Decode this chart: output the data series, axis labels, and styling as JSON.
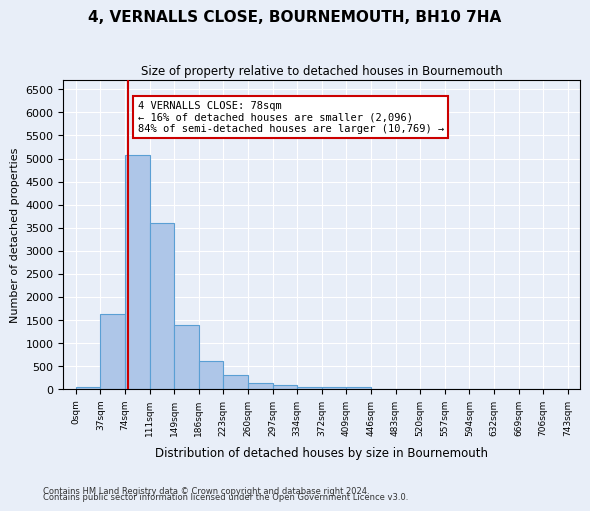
{
  "title": "4, VERNALLS CLOSE, BOURNEMOUTH, BH10 7HA",
  "subtitle": "Size of property relative to detached houses in Bournemouth",
  "xlabel": "Distribution of detached houses by size in Bournemouth",
  "ylabel": "Number of detached properties",
  "footer1": "Contains HM Land Registry data © Crown copyright and database right 2024.",
  "footer2": "Contains public sector information licensed under the Open Government Licence v3.0.",
  "bin_labels": [
    "0sqm",
    "37sqm",
    "74sqm",
    "111sqm",
    "149sqm",
    "186sqm",
    "223sqm",
    "260sqm",
    "297sqm",
    "334sqm",
    "372sqm",
    "409sqm",
    "446sqm",
    "483sqm",
    "520sqm",
    "557sqm",
    "594sqm",
    "632sqm",
    "669sqm",
    "706sqm",
    "743sqm"
  ],
  "bar_values": [
    60,
    1630,
    5080,
    3600,
    1400,
    620,
    300,
    140,
    90,
    50,
    40,
    40,
    0,
    0,
    0,
    0,
    0,
    0,
    0,
    0,
    0
  ],
  "bar_color": "#aec6e8",
  "bar_edge_color": "#5a9fd4",
  "property_line_x": 78,
  "property_line_color": "#cc0000",
  "annotation_text": "4 VERNALLS CLOSE: 78sqm\n← 16% of detached houses are smaller (2,096)\n84% of semi-detached houses are larger (10,769) →",
  "annotation_box_color": "white",
  "annotation_box_edge_color": "#cc0000",
  "ylim": [
    0,
    6700
  ],
  "yticks": [
    0,
    500,
    1000,
    1500,
    2000,
    2500,
    3000,
    3500,
    4000,
    4500,
    5000,
    5500,
    6000,
    6500
  ],
  "background_color": "#e8eef8",
  "plot_background_color": "#e8eef8",
  "grid_color": "white",
  "bin_width": 37
}
